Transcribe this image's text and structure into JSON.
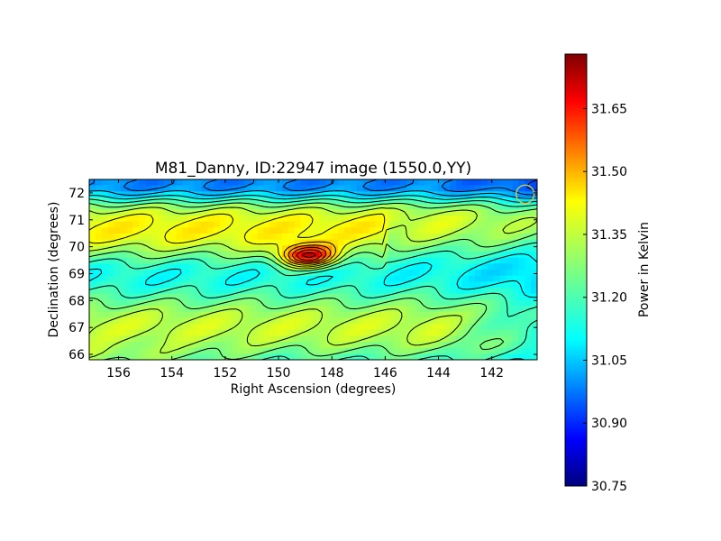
{
  "chart_data": {
    "type": "heatmap",
    "title": "M81_Danny, ID:22947 image (1550.0,YY)",
    "xlabel": "Right Ascension (degrees)",
    "ylabel": "Declination (degrees)",
    "xlim": [
      157.1,
      140.3
    ],
    "ylim": [
      65.8,
      72.5
    ],
    "x_ticks": [
      "156",
      "154",
      "152",
      "150",
      "148",
      "146",
      "144",
      "142"
    ],
    "x_tick_values": [
      156,
      154,
      152,
      150,
      148,
      146,
      144,
      142
    ],
    "y_ticks": [
      "72",
      "71",
      "70",
      "69",
      "68",
      "67",
      "66"
    ],
    "y_tick_values": [
      72,
      71,
      70,
      69,
      68,
      67,
      66
    ],
    "colorbar": {
      "label": "Power in Kelvin",
      "range": [
        30.75,
        31.78
      ],
      "ticks": [
        "31.65",
        "31.50",
        "31.35",
        "31.20",
        "31.05",
        "30.90",
        "30.75"
      ],
      "tick_values": [
        31.65,
        31.5,
        31.35,
        31.2,
        31.05,
        30.9,
        30.75
      ],
      "colormap": "jet"
    },
    "features": {
      "peak": {
        "ra": 148.9,
        "dec": 69.65,
        "value": 31.78
      },
      "beam_marker": {
        "ra": 140.75,
        "dec": 71.95,
        "color": "#c8c84a"
      },
      "background": "horizontal bands of power near 31.0 to 31.35 K, bright near the peak",
      "contours": "black contour lines"
    }
  }
}
